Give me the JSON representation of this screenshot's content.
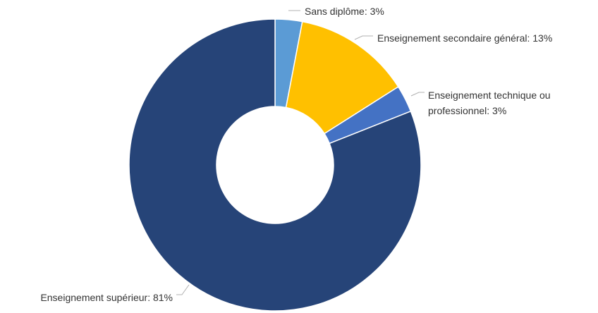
{
  "chart_data": {
    "type": "pie",
    "donut": true,
    "slices": [
      {
        "label": "Sans diplôme",
        "value": 3,
        "text": "Sans diplôme: 3%",
        "color": "#5B9BD5"
      },
      {
        "label": "Enseignement secondaire général",
        "value": 13,
        "text": "Enseignement secondaire général: 13%",
        "color": "#FFC000"
      },
      {
        "label": "Enseignement technique ou professionnel",
        "value": 3,
        "text": [
          "Enseignement technique ou",
          "professionnel: 3%"
        ],
        "color": "#4472C4"
      },
      {
        "label": "Enseignement supérieur",
        "value": 81,
        "text": "Enseignement supérieur: 81%",
        "color": "#264478"
      }
    ],
    "legend": "none",
    "data_labels": "outside"
  }
}
